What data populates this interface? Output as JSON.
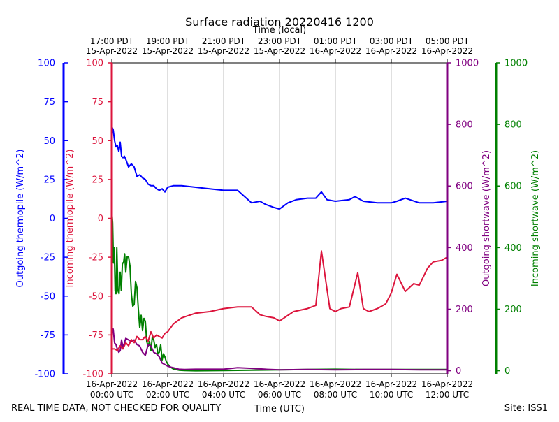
{
  "chart_data": {
    "type": "line",
    "title": "Surface radiation 20220416 1200",
    "top_axis_label": "Time (local)",
    "xlabel": "Time (UTC)",
    "footer_left": "REAL TIME DATA, NOT CHECKED FOR QUALITY",
    "footer_right": "Site: ISS1",
    "x_range_hours": [
      0,
      12
    ],
    "bottom_ticks": [
      {
        "hour": 0,
        "line1": "16-Apr-2022",
        "line2": "00:00 UTC"
      },
      {
        "hour": 2,
        "line1": "16-Apr-2022",
        "line2": "02:00 UTC"
      },
      {
        "hour": 4,
        "line1": "16-Apr-2022",
        "line2": "04:00 UTC"
      },
      {
        "hour": 6,
        "line1": "16-Apr-2022",
        "line2": "06:00 UTC"
      },
      {
        "hour": 8,
        "line1": "16-Apr-2022",
        "line2": "08:00 UTC"
      },
      {
        "hour": 10,
        "line1": "16-Apr-2022",
        "line2": "10:00 UTC"
      },
      {
        "hour": 12,
        "line1": "16-Apr-2022",
        "line2": "12:00 UTC"
      }
    ],
    "top_ticks": [
      {
        "hour": 0,
        "line1": "17:00 PDT",
        "line2": "15-Apr-2022"
      },
      {
        "hour": 2,
        "line1": "19:00 PDT",
        "line2": "15-Apr-2022"
      },
      {
        "hour": 4,
        "line1": "21:00 PDT",
        "line2": "15-Apr-2022"
      },
      {
        "hour": 6,
        "line1": "23:00 PDT",
        "line2": "15-Apr-2022"
      },
      {
        "hour": 8,
        "line1": "01:00 PDT",
        "line2": "16-Apr-2022"
      },
      {
        "hour": 10,
        "line1": "03:00 PDT",
        "line2": "16-Apr-2022"
      },
      {
        "hour": 12,
        "line1": "05:00 PDT",
        "line2": "16-Apr-2022"
      }
    ],
    "axes": [
      {
        "id": "outgoing-thermopile",
        "label": "Outgoing thermopile (W/m^2)",
        "color": "#0000ff",
        "range": [
          -100,
          100
        ],
        "ticks": [
          -100,
          -75,
          -50,
          -25,
          0,
          25,
          50,
          75,
          100
        ]
      },
      {
        "id": "incoming-thermopile",
        "label": "Incoming thermopile (W/m^2)",
        "color": "#dc143c",
        "range": [
          -100,
          100
        ],
        "ticks": [
          -100,
          -75,
          -50,
          -25,
          0,
          25,
          50,
          75,
          100
        ]
      },
      {
        "id": "outgoing-shortwave",
        "label": "Outgoing shortwave (W/m^2)",
        "color": "#800080",
        "range": [
          -10,
          1000
        ],
        "ticks": [
          0,
          200,
          400,
          600,
          800,
          1000
        ]
      },
      {
        "id": "incoming-shortwave",
        "label": "Incoming shortwave (W/m^2)",
        "color": "#008000",
        "range": [
          -10,
          1000
        ],
        "ticks": [
          0,
          200,
          400,
          600,
          800,
          1000
        ]
      }
    ],
    "series": [
      {
        "name": "Incoming shortwave",
        "axis": "incoming-shortwave",
        "color": "#008000",
        "x": [
          0.0,
          0.03,
          0.06,
          0.09,
          0.12,
          0.15,
          0.18,
          0.22,
          0.26,
          0.3,
          0.34,
          0.38,
          0.42,
          0.46,
          0.5,
          0.55,
          0.6,
          0.65,
          0.7,
          0.75,
          0.8,
          0.85,
          0.9,
          0.95,
          1.0,
          1.05,
          1.1,
          1.15,
          1.2,
          1.25,
          1.3,
          1.35,
          1.4,
          1.45,
          1.5,
          1.55,
          1.6,
          1.65,
          1.7,
          1.75,
          1.8,
          1.85,
          1.9,
          1.95,
          2.0,
          2.1,
          2.2,
          2.4,
          2.6,
          3.0,
          4.0,
          5.0,
          6.0,
          7.0,
          8.0,
          9.0,
          10.0,
          11.0,
          12.0
        ],
        "values": [
          520,
          480,
          350,
          400,
          260,
          250,
          400,
          260,
          250,
          320,
          260,
          350,
          350,
          380,
          320,
          370,
          370,
          340,
          250,
          210,
          215,
          290,
          270,
          200,
          140,
          180,
          130,
          170,
          160,
          95,
          80,
          95,
          65,
          110,
          100,
          75,
          85,
          55,
          60,
          85,
          35,
          55,
          45,
          30,
          22,
          12,
          6,
          2,
          1,
          0,
          1,
          2,
          3,
          4,
          5,
          4,
          4,
          4,
          4
        ]
      },
      {
        "name": "Outgoing shortwave",
        "axis": "outgoing-shortwave",
        "color": "#800080",
        "x": [
          0.0,
          0.05,
          0.1,
          0.15,
          0.2,
          0.25,
          0.3,
          0.35,
          0.4,
          0.5,
          0.6,
          0.7,
          0.8,
          0.9,
          1.0,
          1.1,
          1.2,
          1.3,
          1.4,
          1.5,
          1.6,
          1.7,
          1.8,
          1.9,
          2.0,
          2.1,
          2.2,
          2.4,
          2.6,
          3.0,
          4.0,
          4.5,
          5.0,
          5.5,
          6.0,
          7.0,
          8.0,
          9.0,
          10.0,
          11.0,
          12.0
        ],
        "values": [
          140,
          135,
          90,
          85,
          70,
          60,
          65,
          100,
          75,
          105,
          100,
          95,
          100,
          85,
          80,
          60,
          50,
          85,
          80,
          60,
          55,
          45,
          25,
          20,
          15,
          12,
          10,
          5,
          4,
          5,
          5,
          10,
          8,
          5,
          3,
          4,
          3,
          4,
          4,
          3,
          3
        ]
      },
      {
        "name": "Incoming thermopile",
        "axis": "incoming-thermopile",
        "color": "#dc143c",
        "x": [
          0.0,
          0.1,
          0.2,
          0.3,
          0.4,
          0.5,
          0.6,
          0.7,
          0.8,
          0.9,
          1.0,
          1.1,
          1.2,
          1.3,
          1.4,
          1.5,
          1.6,
          1.7,
          1.8,
          1.9,
          2.0,
          2.2,
          2.5,
          3.0,
          3.5,
          4.0,
          4.5,
          5.0,
          5.3,
          5.5,
          5.8,
          6.0,
          6.5,
          7.0,
          7.3,
          7.5,
          7.8,
          8.0,
          8.2,
          8.5,
          8.8,
          9.0,
          9.2,
          9.5,
          9.8,
          10.0,
          10.2,
          10.5,
          10.8,
          11.0,
          11.3,
          11.5,
          11.8,
          12.0
        ],
        "values": [
          -84,
          -84,
          -85,
          -82,
          -84,
          -80,
          -82,
          -78,
          -80,
          -76,
          -78,
          -78,
          -76,
          -79,
          -73,
          -77,
          -75,
          -76,
          -77,
          -74,
          -73,
          -68,
          -64,
          -61,
          -60,
          -58,
          -57,
          -57,
          -62,
          -63,
          -64,
          -66,
          -60,
          -58,
          -56,
          -21,
          -58,
          -60,
          -58,
          -57,
          -35,
          -58,
          -60,
          -58,
          -55,
          -48,
          -36,
          -47,
          -42,
          -43,
          -32,
          -28,
          -27,
          -25
        ]
      },
      {
        "name": "Outgoing thermopile",
        "axis": "outgoing-thermopile",
        "color": "#0000ff",
        "x": [
          0.0,
          0.05,
          0.1,
          0.15,
          0.2,
          0.25,
          0.3,
          0.35,
          0.4,
          0.45,
          0.5,
          0.6,
          0.7,
          0.8,
          0.9,
          1.0,
          1.1,
          1.2,
          1.3,
          1.4,
          1.5,
          1.6,
          1.7,
          1.8,
          1.9,
          2.0,
          2.2,
          2.5,
          3.0,
          3.5,
          4.0,
          4.5,
          5.0,
          5.3,
          5.5,
          5.8,
          6.0,
          6.3,
          6.6,
          7.0,
          7.3,
          7.5,
          7.7,
          8.0,
          8.5,
          8.7,
          9.0,
          9.5,
          10.0,
          10.2,
          10.5,
          11.0,
          11.5,
          12.0
        ],
        "values": [
          59,
          57,
          50,
          46,
          47,
          43,
          49,
          40,
          39,
          40,
          38,
          33,
          35,
          33,
          27,
          28,
          26,
          25,
          22,
          21,
          21,
          19,
          18,
          19,
          17,
          20,
          21,
          21,
          20,
          19,
          18,
          18,
          10,
          11,
          9,
          7,
          6,
          10,
          12,
          13,
          13,
          17,
          12,
          11,
          12,
          14,
          11,
          10,
          10,
          11,
          13,
          10,
          10,
          11
        ]
      }
    ]
  }
}
